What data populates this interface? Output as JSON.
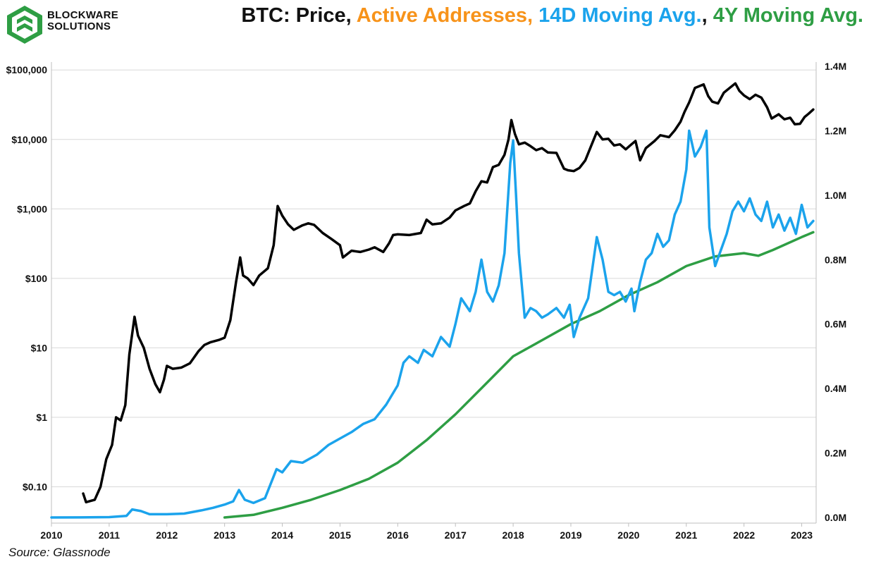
{
  "brand": {
    "line1": "BLOCKWARE",
    "line2": "SOLUTIONS"
  },
  "title": {
    "part1": "BTC: Price, ",
    "part2": "Active Addresses, ",
    "part3": "14D Moving Avg.",
    "part4": ", ",
    "part5": "4Y Moving Avg."
  },
  "colors": {
    "price": "#000000",
    "active_addresses": "#f7931a",
    "ma14": "#1ba3ec",
    "ma4y": "#2e9e44",
    "logo": "#2e9e44"
  },
  "source": "Source: Glassnode",
  "chart_data": {
    "type": "line",
    "x_axis": {
      "ticks": [
        "2010",
        "2011",
        "2012",
        "2013",
        "2014",
        "2015",
        "2016",
        "2017",
        "2018",
        "2019",
        "2020",
        "2021",
        "2022",
        "2023"
      ],
      "range": [
        2010.0,
        2023.25
      ]
    },
    "y_left": {
      "scale": "log",
      "ticks": [
        "$100,000",
        "$10,000",
        "$1,000",
        "$100",
        "$10",
        "$1",
        "$0.10"
      ],
      "tick_values": [
        100000,
        10000,
        1000,
        100,
        10,
        1,
        0.1
      ],
      "range": [
        0.03,
        130000
      ]
    },
    "y_right": {
      "ticks": [
        "1.4M",
        "1.2M",
        "1.0M",
        "0.8M",
        "0.6M",
        "0.4M",
        "0.2M",
        "0.0M"
      ],
      "tick_values": [
        1400000,
        1200000,
        1000000,
        800000,
        600000,
        400000,
        200000,
        0
      ],
      "range": [
        0,
        1400000
      ]
    },
    "grid": "horizontal (left axis)",
    "series": [
      {
        "name": "Price",
        "axis": "left",
        "color": "#000000",
        "points": [
          [
            2010.55,
            0.08
          ],
          [
            2010.6,
            0.06
          ],
          [
            2010.75,
            0.065
          ],
          [
            2010.85,
            0.1
          ],
          [
            2010.95,
            0.25
          ],
          [
            2011.05,
            0.4
          ],
          [
            2011.12,
            1.0
          ],
          [
            2011.2,
            0.9
          ],
          [
            2011.28,
            1.5
          ],
          [
            2011.35,
            8
          ],
          [
            2011.44,
            28
          ],
          [
            2011.5,
            15
          ],
          [
            2011.6,
            10
          ],
          [
            2011.7,
            5
          ],
          [
            2011.8,
            3
          ],
          [
            2011.88,
            2.3
          ],
          [
            2011.95,
            3.5
          ],
          [
            2012.0,
            5.5
          ],
          [
            2012.1,
            5
          ],
          [
            2012.25,
            5.2
          ],
          [
            2012.4,
            6
          ],
          [
            2012.55,
            9
          ],
          [
            2012.65,
            11
          ],
          [
            2012.75,
            12
          ],
          [
            2012.9,
            13
          ],
          [
            2013.0,
            14
          ],
          [
            2013.1,
            25
          ],
          [
            2013.2,
            90
          ],
          [
            2013.27,
            200
          ],
          [
            2013.32,
            110
          ],
          [
            2013.4,
            100
          ],
          [
            2013.5,
            80
          ],
          [
            2013.6,
            110
          ],
          [
            2013.75,
            140
          ],
          [
            2013.85,
            300
          ],
          [
            2013.92,
            1100
          ],
          [
            2014.0,
            800
          ],
          [
            2014.1,
            600
          ],
          [
            2014.2,
            500
          ],
          [
            2014.35,
            580
          ],
          [
            2014.45,
            620
          ],
          [
            2014.55,
            590
          ],
          [
            2014.7,
            450
          ],
          [
            2014.85,
            370
          ],
          [
            2015.0,
            300
          ],
          [
            2015.05,
            200
          ],
          [
            2015.2,
            250
          ],
          [
            2015.35,
            240
          ],
          [
            2015.5,
            260
          ],
          [
            2015.6,
            280
          ],
          [
            2015.75,
            240
          ],
          [
            2015.85,
            320
          ],
          [
            2015.92,
            420
          ],
          [
            2016.0,
            430
          ],
          [
            2016.2,
            420
          ],
          [
            2016.4,
            450
          ],
          [
            2016.5,
            700
          ],
          [
            2016.6,
            600
          ],
          [
            2016.75,
            620
          ],
          [
            2016.9,
            750
          ],
          [
            2017.0,
            950
          ],
          [
            2017.15,
            1100
          ],
          [
            2017.25,
            1200
          ],
          [
            2017.35,
            1800
          ],
          [
            2017.45,
            2500
          ],
          [
            2017.55,
            2400
          ],
          [
            2017.65,
            4000
          ],
          [
            2017.75,
            4300
          ],
          [
            2017.85,
            6000
          ],
          [
            2017.92,
            10000
          ],
          [
            2017.97,
            19000
          ],
          [
            2018.03,
            12000
          ],
          [
            2018.1,
            8500
          ],
          [
            2018.2,
            9000
          ],
          [
            2018.3,
            8000
          ],
          [
            2018.4,
            7000
          ],
          [
            2018.5,
            7500
          ],
          [
            2018.6,
            6500
          ],
          [
            2018.75,
            6400
          ],
          [
            2018.88,
            3800
          ],
          [
            2018.95,
            3600
          ],
          [
            2019.05,
            3500
          ],
          [
            2019.15,
            3900
          ],
          [
            2019.25,
            5000
          ],
          [
            2019.35,
            8000
          ],
          [
            2019.45,
            12800
          ],
          [
            2019.55,
            10000
          ],
          [
            2019.65,
            10200
          ],
          [
            2019.75,
            8200
          ],
          [
            2019.85,
            8500
          ],
          [
            2019.95,
            7200
          ],
          [
            2020.05,
            8500
          ],
          [
            2020.12,
            9500
          ],
          [
            2020.2,
            5000
          ],
          [
            2020.3,
            7500
          ],
          [
            2020.45,
            9500
          ],
          [
            2020.55,
            11500
          ],
          [
            2020.7,
            10800
          ],
          [
            2020.8,
            13500
          ],
          [
            2020.9,
            18000
          ],
          [
            2020.97,
            25000
          ],
          [
            2021.05,
            34000
          ],
          [
            2021.15,
            55000
          ],
          [
            2021.3,
            62000
          ],
          [
            2021.38,
            42000
          ],
          [
            2021.45,
            35000
          ],
          [
            2021.55,
            33000
          ],
          [
            2021.65,
            47000
          ],
          [
            2021.75,
            55000
          ],
          [
            2021.85,
            64000
          ],
          [
            2021.92,
            50000
          ],
          [
            2022.0,
            43000
          ],
          [
            2022.1,
            38000
          ],
          [
            2022.2,
            44000
          ],
          [
            2022.3,
            40000
          ],
          [
            2022.4,
            29000
          ],
          [
            2022.48,
            20000
          ],
          [
            2022.6,
            23000
          ],
          [
            2022.7,
            19500
          ],
          [
            2022.8,
            20500
          ],
          [
            2022.88,
            16500
          ],
          [
            2022.97,
            16800
          ],
          [
            2023.05,
            21000
          ],
          [
            2023.12,
            23500
          ],
          [
            2023.2,
            27000
          ]
        ]
      },
      {
        "name": "14D Moving Avg.",
        "axis": "right",
        "color": "#1ba3ec",
        "points": [
          [
            2010.0,
            0
          ],
          [
            2010.5,
            200
          ],
          [
            2011.0,
            1000
          ],
          [
            2011.3,
            5000
          ],
          [
            2011.4,
            25000
          ],
          [
            2011.55,
            20000
          ],
          [
            2011.7,
            10000
          ],
          [
            2012.0,
            10000
          ],
          [
            2012.3,
            12000
          ],
          [
            2012.6,
            22000
          ],
          [
            2012.8,
            30000
          ],
          [
            2013.0,
            40000
          ],
          [
            2013.15,
            50000
          ],
          [
            2013.25,
            85000
          ],
          [
            2013.35,
            55000
          ],
          [
            2013.5,
            45000
          ],
          [
            2013.7,
            60000
          ],
          [
            2013.9,
            150000
          ],
          [
            2014.0,
            140000
          ],
          [
            2014.15,
            175000
          ],
          [
            2014.35,
            170000
          ],
          [
            2014.6,
            195000
          ],
          [
            2014.8,
            225000
          ],
          [
            2015.0,
            245000
          ],
          [
            2015.2,
            265000
          ],
          [
            2015.4,
            290000
          ],
          [
            2015.6,
            305000
          ],
          [
            2015.8,
            350000
          ],
          [
            2016.0,
            410000
          ],
          [
            2016.1,
            480000
          ],
          [
            2016.2,
            500000
          ],
          [
            2016.35,
            480000
          ],
          [
            2016.45,
            520000
          ],
          [
            2016.6,
            500000
          ],
          [
            2016.75,
            560000
          ],
          [
            2016.9,
            530000
          ],
          [
            2017.0,
            600000
          ],
          [
            2017.1,
            680000
          ],
          [
            2017.25,
            640000
          ],
          [
            2017.35,
            700000
          ],
          [
            2017.45,
            800000
          ],
          [
            2017.55,
            700000
          ],
          [
            2017.65,
            670000
          ],
          [
            2017.75,
            720000
          ],
          [
            2017.85,
            820000
          ],
          [
            2017.95,
            1100000
          ],
          [
            2018.0,
            1170000
          ],
          [
            2018.05,
            1000000
          ],
          [
            2018.1,
            820000
          ],
          [
            2018.2,
            620000
          ],
          [
            2018.3,
            650000
          ],
          [
            2018.4,
            640000
          ],
          [
            2018.5,
            620000
          ],
          [
            2018.6,
            630000
          ],
          [
            2018.75,
            650000
          ],
          [
            2018.88,
            620000
          ],
          [
            2018.98,
            660000
          ],
          [
            2019.05,
            560000
          ],
          [
            2019.15,
            620000
          ],
          [
            2019.3,
            680000
          ],
          [
            2019.45,
            870000
          ],
          [
            2019.55,
            800000
          ],
          [
            2019.65,
            700000
          ],
          [
            2019.75,
            690000
          ],
          [
            2019.85,
            700000
          ],
          [
            2019.95,
            670000
          ],
          [
            2020.05,
            710000
          ],
          [
            2020.1,
            640000
          ],
          [
            2020.2,
            730000
          ],
          [
            2020.3,
            800000
          ],
          [
            2020.4,
            820000
          ],
          [
            2020.5,
            880000
          ],
          [
            2020.6,
            840000
          ],
          [
            2020.7,
            860000
          ],
          [
            2020.8,
            940000
          ],
          [
            2020.9,
            980000
          ],
          [
            2021.0,
            1080000
          ],
          [
            2021.05,
            1200000
          ],
          [
            2021.15,
            1120000
          ],
          [
            2021.25,
            1150000
          ],
          [
            2021.35,
            1200000
          ],
          [
            2021.4,
            900000
          ],
          [
            2021.5,
            780000
          ],
          [
            2021.6,
            830000
          ],
          [
            2021.7,
            880000
          ],
          [
            2021.8,
            950000
          ],
          [
            2021.9,
            980000
          ],
          [
            2022.0,
            950000
          ],
          [
            2022.1,
            990000
          ],
          [
            2022.2,
            940000
          ],
          [
            2022.3,
            920000
          ],
          [
            2022.4,
            980000
          ],
          [
            2022.5,
            900000
          ],
          [
            2022.6,
            940000
          ],
          [
            2022.7,
            890000
          ],
          [
            2022.8,
            930000
          ],
          [
            2022.9,
            880000
          ],
          [
            2023.0,
            970000
          ],
          [
            2023.1,
            900000
          ],
          [
            2023.2,
            920000
          ]
        ]
      },
      {
        "name": "4Y Moving Avg.",
        "axis": "right",
        "color": "#2e9e44",
        "points": [
          [
            2013.0,
            0
          ],
          [
            2013.5,
            8000
          ],
          [
            2014.0,
            30000
          ],
          [
            2014.5,
            55000
          ],
          [
            2015.0,
            85000
          ],
          [
            2015.5,
            120000
          ],
          [
            2016.0,
            170000
          ],
          [
            2016.5,
            240000
          ],
          [
            2017.0,
            320000
          ],
          [
            2017.5,
            410000
          ],
          [
            2018.0,
            500000
          ],
          [
            2018.5,
            550000
          ],
          [
            2019.0,
            600000
          ],
          [
            2019.5,
            640000
          ],
          [
            2020.0,
            690000
          ],
          [
            2020.5,
            730000
          ],
          [
            2021.0,
            780000
          ],
          [
            2021.5,
            810000
          ],
          [
            2022.0,
            820000
          ],
          [
            2022.25,
            812000
          ],
          [
            2022.5,
            830000
          ],
          [
            2023.0,
            870000
          ],
          [
            2023.2,
            885000
          ]
        ]
      }
    ]
  }
}
